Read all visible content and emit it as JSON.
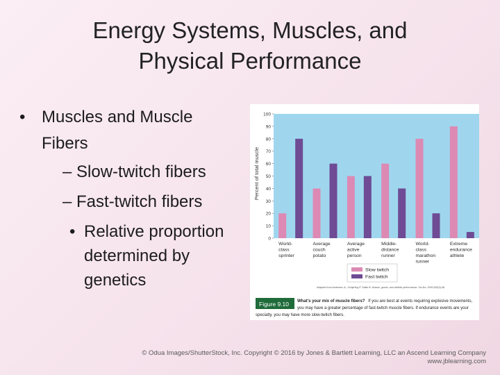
{
  "slide": {
    "title_line1": "Energy Systems, Muscles, and",
    "title_line2": "Physical Performance",
    "bullets": {
      "level1": "Muscles and Muscle Fibers",
      "level2": [
        "– Slow-twitch fibers",
        "– Fast-twitch fibers"
      ],
      "level3": "Relative proportion determined by genetics"
    },
    "credit_line1": "© Odua Images/ShutterStock, Inc. Copyright © 2016 by Jones & Bartlett Learning, LLC an Ascend Learning Company",
    "credit_line2": "www.jblearning.com"
  },
  "figure": {
    "label": "Figure 9.10",
    "caption_bold": "What's your mix of muscle fibers?",
    "caption_line1": "If you are best at events requiring explosive movements,",
    "caption_line2": "you may have a greater percentage of fast-twitch muscle fibers. If endurance events are your",
    "caption_line3": "specialty, you may have more slow-twitch fibers.",
    "source": "Adapted from Andersen JL, Schjerling P, Saltin B. Muscle, genes, and athletic performance. Sci Am. 2000;283(3):48."
  },
  "colors": {
    "slow": "#dc8ab4",
    "fast": "#6e4b94",
    "plot_bg": "#9fd6ee",
    "figure_label_bg": "#1f6b3a"
  },
  "chart_data": {
    "type": "bar",
    "categories": [
      [
        "World-",
        "class",
        "sprinter"
      ],
      [
        "Average",
        "couch",
        "potato"
      ],
      [
        "Average",
        "active",
        "person"
      ],
      [
        "Middle-",
        "distance",
        "runner"
      ],
      [
        "World-",
        "class",
        "marathon",
        "runner"
      ],
      [
        "Extreme",
        "endurance",
        "athlete"
      ]
    ],
    "series": [
      {
        "name": "Slow twitch",
        "values": [
          20,
          40,
          50,
          60,
          80,
          90
        ]
      },
      {
        "name": "Fast twitch",
        "values": [
          80,
          60,
          50,
          40,
          20,
          5
        ]
      }
    ],
    "ylabel": "Percent of total muscle",
    "ylim": [
      0,
      100
    ],
    "yticks": [
      0,
      10,
      20,
      30,
      40,
      50,
      60,
      70,
      80,
      90,
      100
    ],
    "legend": "bottom-center",
    "grid": false
  }
}
